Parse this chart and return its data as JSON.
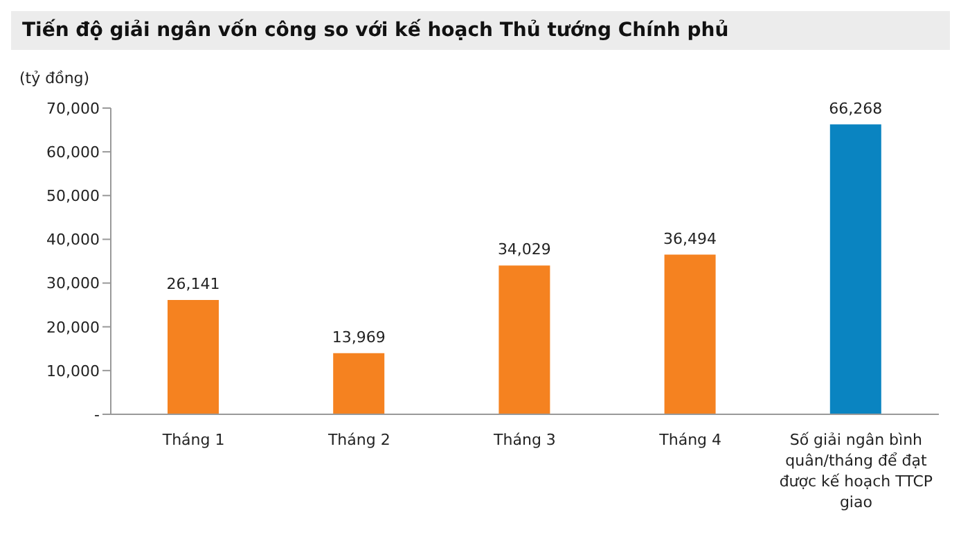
{
  "chart_data": {
    "type": "bar",
    "title": "Tiến độ giải ngân vốn công so với kế hoạch Thủ tướng Chính phủ",
    "ylabel": "(tỷ đồng)",
    "categories": [
      "Tháng 1",
      "Tháng 2",
      "Tháng 3",
      "Tháng 4",
      "Số giải ngân bình quân/tháng để đạt được kế hoạch TTCP giao"
    ],
    "values": [
      26141,
      13969,
      34029,
      36494,
      66268
    ],
    "colors": [
      "#f58220",
      "#f58220",
      "#f58220",
      "#f58220",
      "#0a84c1"
    ],
    "value_labels": [
      "26,141",
      "13,969",
      "34,029",
      "36,494",
      "66,268"
    ],
    "ylim": [
      0,
      70000
    ],
    "yticks": [
      {
        "value": 0,
        "label": "-"
      },
      {
        "value": 10000,
        "label": "10,000"
      },
      {
        "value": 20000,
        "label": "20,000"
      },
      {
        "value": 30000,
        "label": "30,000"
      },
      {
        "value": 40000,
        "label": "40,000"
      },
      {
        "value": 50000,
        "label": "50,000"
      },
      {
        "value": 60000,
        "label": "60,000"
      },
      {
        "value": 70000,
        "label": "70,000"
      }
    ],
    "grid": false,
    "legend": false
  }
}
